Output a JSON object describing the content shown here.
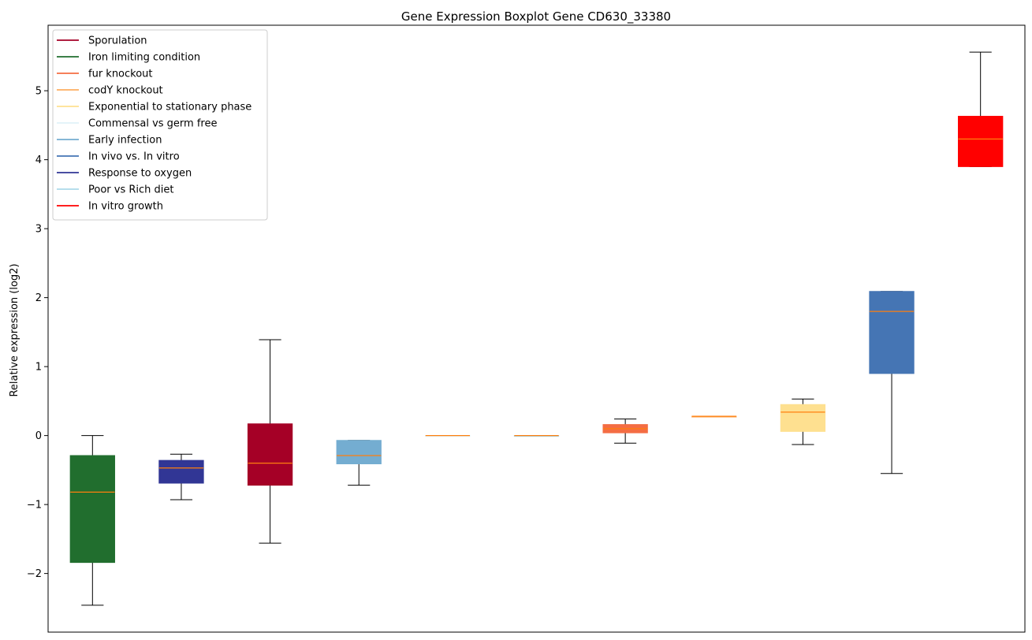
{
  "chart_data": {
    "type": "box",
    "title": "Gene Expression Boxplot Gene CD630_33380",
    "xlabel": "",
    "ylabel": "Relative expression (log2)",
    "ylim": [
      -2.85,
      5.95
    ],
    "yticks": [
      -2,
      -1,
      0,
      1,
      2,
      3,
      4,
      5
    ],
    "ytick_labels": [
      "−2",
      "−1",
      "0",
      "1",
      "2",
      "3",
      "4",
      "5"
    ],
    "xticks_visible": false,
    "grid": false,
    "legend_position": "top-left",
    "median_color": "#ff7f0e",
    "whisker_color": "#000000",
    "legend": [
      {
        "label": "Sporulation",
        "color": "#a50026"
      },
      {
        "label": "Iron limiting condition",
        "color": "#216e2e"
      },
      {
        "label": "fur knockout",
        "color": "#f46d43"
      },
      {
        "label": "codY knockout",
        "color": "#fdae61"
      },
      {
        "label": "Exponential to stationary phase",
        "color": "#fee090"
      },
      {
        "label": "Commensal vs germ free",
        "color": "#e0f3f8"
      },
      {
        "label": "Early infection",
        "color": "#74add1"
      },
      {
        "label": "In vivo vs. In vitro",
        "color": "#4575b4"
      },
      {
        "label": "Response to oxygen",
        "color": "#313695"
      },
      {
        "label": "Poor vs Rich diet",
        "color": "#abd9e9"
      },
      {
        "label": "In vitro growth",
        "color": "#ff0000"
      }
    ],
    "boxes": [
      {
        "group": "Iron limiting condition",
        "color": "#216e2e",
        "whisker_low": -2.46,
        "q1": -1.84,
        "median": -0.82,
        "q3": -0.29,
        "whisker_high": 0.0
      },
      {
        "group": "Response to oxygen",
        "color": "#313695",
        "whisker_low": -0.93,
        "q1": -0.69,
        "median": -0.47,
        "q3": -0.36,
        "whisker_high": -0.27
      },
      {
        "group": "Sporulation",
        "color": "#a50026",
        "whisker_low": -1.56,
        "q1": -0.72,
        "median": -0.4,
        "q3": 0.17,
        "whisker_high": 1.39
      },
      {
        "group": "Early infection",
        "color": "#74add1",
        "whisker_low": -0.72,
        "q1": -0.41,
        "median": -0.29,
        "q3": -0.07,
        "whisker_high": -0.07
      },
      {
        "group": "Commensal vs germ free",
        "color": "#e0f3f8",
        "whisker_low": 0.0,
        "q1": 0.0,
        "median": 0.0,
        "q3": 0.0,
        "whisker_high": 0.0
      },
      {
        "group": "Poor vs Rich diet",
        "color": "#abd9e9",
        "whisker_low": 0.0,
        "q1": 0.0,
        "median": 0.0,
        "q3": 0.0,
        "whisker_high": 0.0
      },
      {
        "group": "fur knockout",
        "color": "#f46d43",
        "whisker_low": -0.11,
        "q1": 0.04,
        "median": 0.1,
        "q3": 0.16,
        "whisker_high": 0.24
      },
      {
        "group": "codY knockout",
        "color": "#fdae61",
        "whisker_low": 0.28,
        "q1": 0.28,
        "median": 0.28,
        "q3": 0.28,
        "whisker_high": 0.28
      },
      {
        "group": "Exponential to stationary phase",
        "color": "#fee090",
        "whisker_low": -0.13,
        "q1": 0.06,
        "median": 0.34,
        "q3": 0.45,
        "whisker_high": 0.53
      },
      {
        "group": "In vivo vs. In vitro",
        "color": "#4575b4",
        "whisker_low": -0.55,
        "q1": 0.9,
        "median": 1.8,
        "q3": 2.09,
        "whisker_high": 2.09
      },
      {
        "group": "In vitro growth",
        "color": "#ff0000",
        "whisker_low": 3.9,
        "q1": 3.9,
        "median": 4.3,
        "q3": 4.63,
        "whisker_high": 5.56
      }
    ]
  }
}
